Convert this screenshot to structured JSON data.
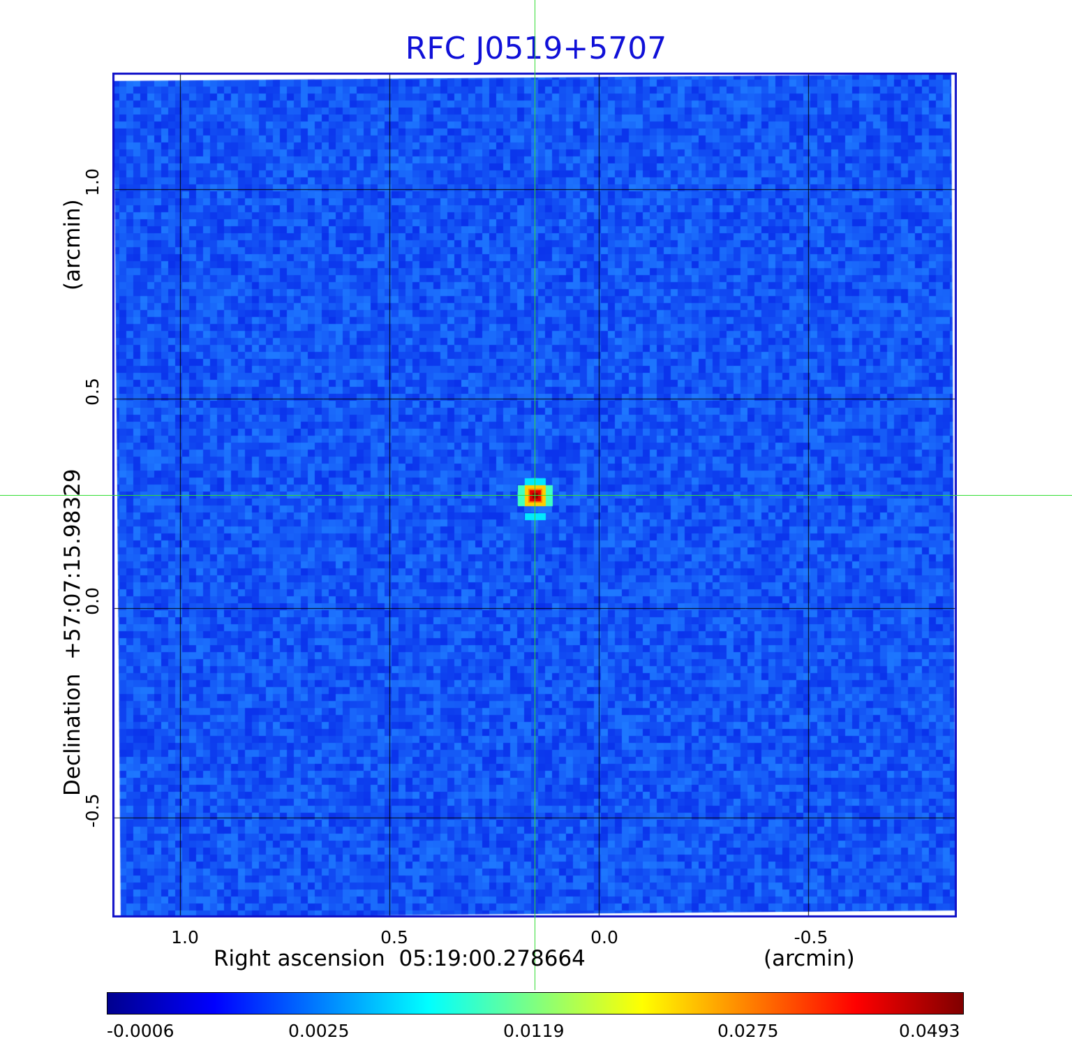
{
  "title": "RFC J0519+5707",
  "x_axis": {
    "label": "Right ascension  05:19:00.278664",
    "unit": "(arcmin)",
    "ticks": [
      "1.0",
      "0.5",
      "0.0",
      "-0.5"
    ]
  },
  "y_axis": {
    "label": "Declination  +57:07:15.98329",
    "unit": "(arcmin)",
    "ticks": [
      "1.0",
      "0.5",
      "0.0",
      "-0.5"
    ]
  },
  "colorbar": {
    "ticks": [
      "-0.0006",
      "0.0025",
      "0.0119",
      "0.0275",
      "0.0493"
    ],
    "colors": [
      "#00008f",
      "#0000ff",
      "#0080ff",
      "#00ffff",
      "#80ff80",
      "#ffff00",
      "#ff8000",
      "#ff0000",
      "#800000"
    ]
  },
  "image": {
    "background_color": "#0a46ff",
    "grid_color": "#000000",
    "crosshair_color": "#33dd33",
    "frame_color": "#1010c8"
  }
}
